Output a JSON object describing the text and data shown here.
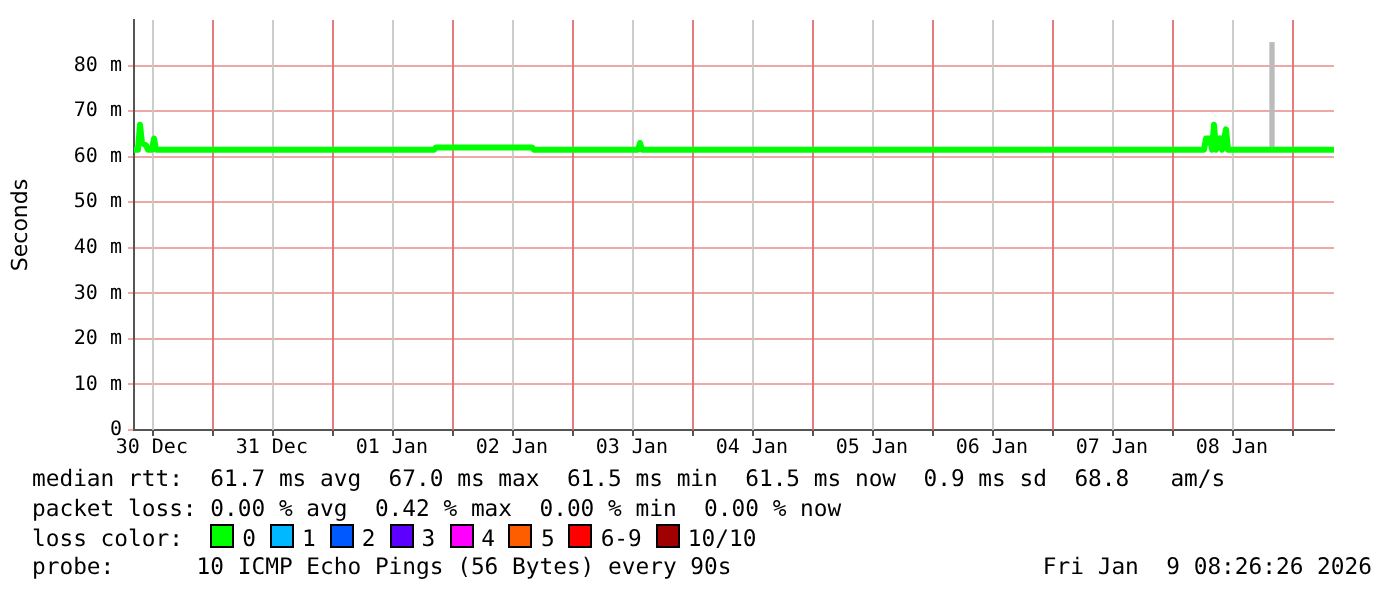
{
  "chart_data": {
    "type": "line",
    "ylabel": "Seconds",
    "xlim": [
      "2025-12-30T08:26",
      "2026-01-09T08:26"
    ],
    "xticks": [
      {
        "value": "2025-12-30T12:00",
        "label": "30 Dec"
      },
      {
        "value": "2025-12-31T00:00",
        "label": null
      },
      {
        "value": "2025-12-31T12:00",
        "label": "31 Dec"
      },
      {
        "value": "2026-01-01T00:00",
        "label": null
      },
      {
        "value": "2026-01-01T12:00",
        "label": "01 Jan"
      },
      {
        "value": "2026-01-02T00:00",
        "label": null
      },
      {
        "value": "2026-01-02T12:00",
        "label": "02 Jan"
      },
      {
        "value": "2026-01-03T00:00",
        "label": null
      },
      {
        "value": "2026-01-03T12:00",
        "label": "03 Jan"
      },
      {
        "value": "2026-01-04T00:00",
        "label": null
      },
      {
        "value": "2026-01-04T12:00",
        "label": "04 Jan"
      },
      {
        "value": "2026-01-05T00:00",
        "label": null
      },
      {
        "value": "2026-01-05T12:00",
        "label": "05 Jan"
      },
      {
        "value": "2026-01-06T00:00",
        "label": null
      },
      {
        "value": "2026-01-06T12:00",
        "label": "06 Jan"
      },
      {
        "value": "2026-01-07T00:00",
        "label": null
      },
      {
        "value": "2026-01-07T12:00",
        "label": "07 Jan"
      },
      {
        "value": "2026-01-08T00:00",
        "label": null
      },
      {
        "value": "2026-01-08T12:00",
        "label": "08 Jan"
      },
      {
        "value": "2026-01-09T00:00",
        "label": null
      }
    ],
    "ylim": [
      0,
      90
    ],
    "yticks": [
      0,
      {
        "value": 10,
        "label": "10 m"
      },
      {
        "value": 20,
        "label": "20 m"
      },
      {
        "value": 30,
        "label": "30 m"
      },
      {
        "value": 40,
        "label": "40 m"
      },
      {
        "value": 50,
        "label": "50 m"
      },
      {
        "value": 60,
        "label": "60 m"
      },
      {
        "value": 70,
        "label": "70 m"
      },
      {
        "value": 80,
        "label": "80 m"
      }
    ],
    "grid": true,
    "legend": false,
    "marker": "none",
    "line_style": "solid",
    "series": [
      {
        "color": "#00ff00",
        "x": [
          "2025-12-30T08:26",
          "2025-12-30T09:14",
          "2025-12-30T09:38",
          "2025-12-30T10:02",
          "2025-12-30T10:50",
          "2025-12-30T11:14",
          "2025-12-30T12:02",
          "2025-12-30T12:26",
          "2025-12-30T12:50",
          "2026-01-01T20:26",
          "2026-01-01T20:50",
          "2026-01-02T16:02",
          "2026-01-02T16:26",
          "2026-01-03T13:14",
          "2026-01-03T13:38",
          "2026-01-03T14:02",
          "2026-01-08T06:26",
          "2026-01-08T06:50",
          "2026-01-08T07:38",
          "2026-01-08T08:02",
          "2026-01-08T08:26",
          "2026-01-08T08:50",
          "2026-01-08T09:38",
          "2026-01-08T10:02",
          "2026-01-08T10:50",
          "2026-01-08T11:14",
          "2026-01-09T08:26"
        ],
        "values": [
          61.5,
          61.5,
          67,
          63,
          62.5,
          61.5,
          61.5,
          64,
          61.5,
          61.5,
          62,
          62,
          61.5,
          61.5,
          63,
          61.5,
          61.5,
          64,
          64,
          61.5,
          67,
          61.5,
          64,
          61.5,
          66,
          61.5,
          61.5
        ]
      },
      {
        "type": "bar",
        "color": "#bbbbbb",
        "x": [
          "2026-01-08T20:02"
        ],
        "base": [
          61.5
        ],
        "values": [
          23.5
        ]
      }
    ],
    "annotations": [
      "median rtt:  61.7 ms avg  67.0 ms max  61.5 ms min  61.5 ms now  0.9 ms sd  68.8   am/s",
      "packet loss: 0.00 % avg  0.42 % max  0.00 % min  0.00 % now",
      "loss color:",
      "0",
      "1",
      "2",
      "3",
      "4",
      "5",
      "6-9",
      "10/10",
      "probe:      10 ICMP Echo Pings (56 Bytes) every 90s",
      "Fri Jan  9 08:26:26 2026"
    ]
  }
}
